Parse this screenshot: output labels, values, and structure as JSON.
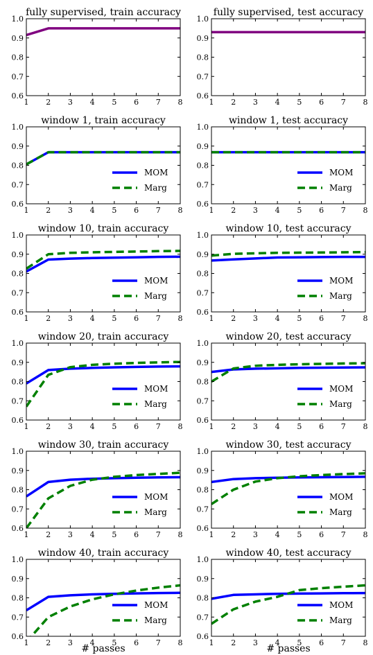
{
  "figure": {
    "xlabel": "# passes",
    "colors": {
      "mom": "#0000ff",
      "marg": "#008000",
      "supervised": "#800080"
    }
  },
  "chart_data": [
    {
      "type": "line",
      "title": "fully supervised, train accuracy",
      "x": [
        1,
        2,
        3,
        4,
        5,
        6,
        7,
        8
      ],
      "xlim": [
        1,
        8
      ],
      "ylim": [
        0.6,
        1.0
      ],
      "xticks": [
        1,
        2,
        3,
        4,
        5,
        6,
        7,
        8
      ],
      "yticks": [
        0.6,
        0.7,
        0.8,
        0.9,
        1.0
      ],
      "legend": "none",
      "series": [
        {
          "values": [
            0.915,
            0.95,
            0.95,
            0.95,
            0.95,
            0.95,
            0.95,
            0.95
          ],
          "color": "#800080",
          "style": "solid"
        }
      ]
    },
    {
      "type": "line",
      "title": "fully supervised, test accuracy",
      "x": [
        1,
        2,
        3,
        4,
        5,
        6,
        7,
        8
      ],
      "xlim": [
        1,
        8
      ],
      "ylim": [
        0.6,
        1.0
      ],
      "xticks": [
        1,
        2,
        3,
        4,
        5,
        6,
        7,
        8
      ],
      "yticks": [
        0.6,
        0.7,
        0.8,
        0.9,
        1.0
      ],
      "legend": "none",
      "series": [
        {
          "values": [
            0.93,
            0.93,
            0.93,
            0.93,
            0.93,
            0.93,
            0.93,
            0.93
          ],
          "color": "#800080",
          "style": "solid"
        }
      ]
    },
    {
      "type": "line",
      "title": "window 1, train accuracy",
      "x": [
        1,
        2,
        3,
        4,
        5,
        6,
        7,
        8
      ],
      "xlim": [
        1,
        8
      ],
      "ylim": [
        0.6,
        1.0
      ],
      "xticks": [
        1,
        2,
        3,
        4,
        5,
        6,
        7,
        8
      ],
      "yticks": [
        0.6,
        0.7,
        0.8,
        0.9,
        1.0
      ],
      "legend": "bottom-right",
      "series": [
        {
          "name": "MOM",
          "values": [
            0.805,
            0.868,
            0.868,
            0.868,
            0.868,
            0.868,
            0.868,
            0.868
          ],
          "color": "#0000ff",
          "style": "solid"
        },
        {
          "name": "Marg",
          "values": [
            0.805,
            0.868,
            0.868,
            0.868,
            0.868,
            0.868,
            0.868,
            0.868
          ],
          "color": "#008000",
          "style": "dashed"
        }
      ]
    },
    {
      "type": "line",
      "title": "window 1, test accuracy",
      "x": [
        1,
        2,
        3,
        4,
        5,
        6,
        7,
        8
      ],
      "xlim": [
        1,
        8
      ],
      "ylim": [
        0.6,
        1.0
      ],
      "xticks": [
        1,
        2,
        3,
        4,
        5,
        6,
        7,
        8
      ],
      "yticks": [
        0.6,
        0.7,
        0.8,
        0.9,
        1.0
      ],
      "legend": "bottom-right",
      "series": [
        {
          "name": "MOM",
          "values": [
            0.868,
            0.868,
            0.868,
            0.868,
            0.868,
            0.868,
            0.868,
            0.868
          ],
          "color": "#0000ff",
          "style": "solid"
        },
        {
          "name": "Marg",
          "values": [
            0.868,
            0.868,
            0.868,
            0.868,
            0.868,
            0.868,
            0.868,
            0.868
          ],
          "color": "#008000",
          "style": "dashed"
        }
      ]
    },
    {
      "type": "line",
      "title": "window 10, train accuracy",
      "x": [
        1,
        2,
        3,
        4,
        5,
        6,
        7,
        8
      ],
      "xlim": [
        1,
        8
      ],
      "ylim": [
        0.6,
        1.0
      ],
      "xticks": [
        1,
        2,
        3,
        4,
        5,
        6,
        7,
        8
      ],
      "yticks": [
        0.6,
        0.7,
        0.8,
        0.9,
        1.0
      ],
      "legend": "bottom-right",
      "series": [
        {
          "name": "MOM",
          "values": [
            0.81,
            0.872,
            0.877,
            0.88,
            0.882,
            0.884,
            0.886,
            0.887
          ],
          "color": "#0000ff",
          "style": "solid"
        },
        {
          "name": "Marg",
          "values": [
            0.825,
            0.9,
            0.907,
            0.91,
            0.912,
            0.914,
            0.916,
            0.917
          ],
          "color": "#008000",
          "style": "dashed"
        }
      ]
    },
    {
      "type": "line",
      "title": "window 10, test accuracy",
      "x": [
        1,
        2,
        3,
        4,
        5,
        6,
        7,
        8
      ],
      "xlim": [
        1,
        8
      ],
      "ylim": [
        0.6,
        1.0
      ],
      "xticks": [
        1,
        2,
        3,
        4,
        5,
        6,
        7,
        8
      ],
      "yticks": [
        0.6,
        0.7,
        0.8,
        0.9,
        1.0
      ],
      "legend": "bottom-right",
      "series": [
        {
          "name": "MOM",
          "values": [
            0.867,
            0.873,
            0.878,
            0.883,
            0.884,
            0.885,
            0.886,
            0.886
          ],
          "color": "#0000ff",
          "style": "solid"
        },
        {
          "name": "Marg",
          "values": [
            0.893,
            0.902,
            0.905,
            0.907,
            0.908,
            0.909,
            0.91,
            0.911
          ],
          "color": "#008000",
          "style": "dashed"
        }
      ]
    },
    {
      "type": "line",
      "title": "window 20, train accuracy",
      "x": [
        1,
        2,
        3,
        4,
        5,
        6,
        7,
        8
      ],
      "xlim": [
        1,
        8
      ],
      "ylim": [
        0.6,
        1.0
      ],
      "xticks": [
        1,
        2,
        3,
        4,
        5,
        6,
        7,
        8
      ],
      "yticks": [
        0.6,
        0.7,
        0.8,
        0.9,
        1.0
      ],
      "legend": "bottom-right",
      "series": [
        {
          "name": "MOM",
          "values": [
            0.79,
            0.86,
            0.867,
            0.871,
            0.874,
            0.876,
            0.878,
            0.879
          ],
          "color": "#0000ff",
          "style": "solid"
        },
        {
          "name": "Marg",
          "values": [
            0.67,
            0.835,
            0.875,
            0.887,
            0.893,
            0.897,
            0.9,
            0.902
          ],
          "color": "#008000",
          "style": "dashed"
        }
      ]
    },
    {
      "type": "line",
      "title": "window 20, test accuracy",
      "x": [
        1,
        2,
        3,
        4,
        5,
        6,
        7,
        8
      ],
      "xlim": [
        1,
        8
      ],
      "ylim": [
        0.6,
        1.0
      ],
      "xticks": [
        1,
        2,
        3,
        4,
        5,
        6,
        7,
        8
      ],
      "yticks": [
        0.6,
        0.7,
        0.8,
        0.9,
        1.0
      ],
      "legend": "bottom-right",
      "series": [
        {
          "name": "MOM",
          "values": [
            0.85,
            0.863,
            0.867,
            0.869,
            0.871,
            0.872,
            0.873,
            0.874
          ],
          "color": "#0000ff",
          "style": "solid"
        },
        {
          "name": "Marg",
          "values": [
            0.8,
            0.868,
            0.882,
            0.887,
            0.89,
            0.892,
            0.894,
            0.895
          ],
          "color": "#008000",
          "style": "dashed"
        }
      ]
    },
    {
      "type": "line",
      "title": "window 30, train accuracy",
      "x": [
        1,
        2,
        3,
        4,
        5,
        6,
        7,
        8
      ],
      "xlim": [
        1,
        8
      ],
      "ylim": [
        0.6,
        1.0
      ],
      "xticks": [
        1,
        2,
        3,
        4,
        5,
        6,
        7,
        8
      ],
      "yticks": [
        0.6,
        0.7,
        0.8,
        0.9,
        1.0
      ],
      "legend": "bottom-right",
      "series": [
        {
          "name": "MOM",
          "values": [
            0.765,
            0.84,
            0.852,
            0.857,
            0.86,
            0.862,
            0.864,
            0.865
          ],
          "color": "#0000ff",
          "style": "solid"
        },
        {
          "name": "Marg",
          "values": [
            0.6,
            0.755,
            0.82,
            0.852,
            0.867,
            0.876,
            0.882,
            0.888
          ],
          "color": "#008000",
          "style": "dashed"
        }
      ]
    },
    {
      "type": "line",
      "title": "window 30, test accuracy",
      "x": [
        1,
        2,
        3,
        4,
        5,
        6,
        7,
        8
      ],
      "xlim": [
        1,
        8
      ],
      "ylim": [
        0.6,
        1.0
      ],
      "xticks": [
        1,
        2,
        3,
        4,
        5,
        6,
        7,
        8
      ],
      "yticks": [
        0.6,
        0.7,
        0.8,
        0.9,
        1.0
      ],
      "legend": "bottom-right",
      "series": [
        {
          "name": "MOM",
          "values": [
            0.84,
            0.855,
            0.86,
            0.862,
            0.864,
            0.865,
            0.866,
            0.867
          ],
          "color": "#0000ff",
          "style": "solid"
        },
        {
          "name": "Marg",
          "values": [
            0.725,
            0.8,
            0.842,
            0.86,
            0.87,
            0.876,
            0.881,
            0.885
          ],
          "color": "#008000",
          "style": "dashed"
        }
      ]
    },
    {
      "type": "line",
      "title": "window 40, train accuracy",
      "x": [
        1,
        2,
        3,
        4,
        5,
        6,
        7,
        8
      ],
      "xlim": [
        1,
        8
      ],
      "ylim": [
        0.6,
        1.0
      ],
      "xticks": [
        1,
        2,
        3,
        4,
        5,
        6,
        7,
        8
      ],
      "yticks": [
        0.6,
        0.7,
        0.8,
        0.9,
        1.0
      ],
      "legend": "bottom-right",
      "series": [
        {
          "name": "MOM",
          "values": [
            0.735,
            0.805,
            0.813,
            0.818,
            0.821,
            0.823,
            0.825,
            0.826
          ],
          "color": "#0000ff",
          "style": "solid"
        },
        {
          "name": "Marg",
          "values": [
            0.57,
            0.7,
            0.755,
            0.792,
            0.818,
            0.838,
            0.853,
            0.865
          ],
          "color": "#008000",
          "style": "dashed"
        }
      ]
    },
    {
      "type": "line",
      "title": "window 40, test accuracy",
      "x": [
        1,
        2,
        3,
        4,
        5,
        6,
        7,
        8
      ],
      "xlim": [
        1,
        8
      ],
      "ylim": [
        0.6,
        1.0
      ],
      "xticks": [
        1,
        2,
        3,
        4,
        5,
        6,
        7,
        8
      ],
      "yticks": [
        0.6,
        0.7,
        0.8,
        0.9,
        1.0
      ],
      "legend": "bottom-right",
      "series": [
        {
          "name": "MOM",
          "values": [
            0.795,
            0.815,
            0.818,
            0.821,
            0.822,
            0.823,
            0.824,
            0.825
          ],
          "color": "#0000ff",
          "style": "solid"
        },
        {
          "name": "Marg",
          "values": [
            0.665,
            0.74,
            0.78,
            0.805,
            0.84,
            0.85,
            0.858,
            0.865
          ],
          "color": "#008000",
          "style": "dashed"
        }
      ]
    }
  ]
}
